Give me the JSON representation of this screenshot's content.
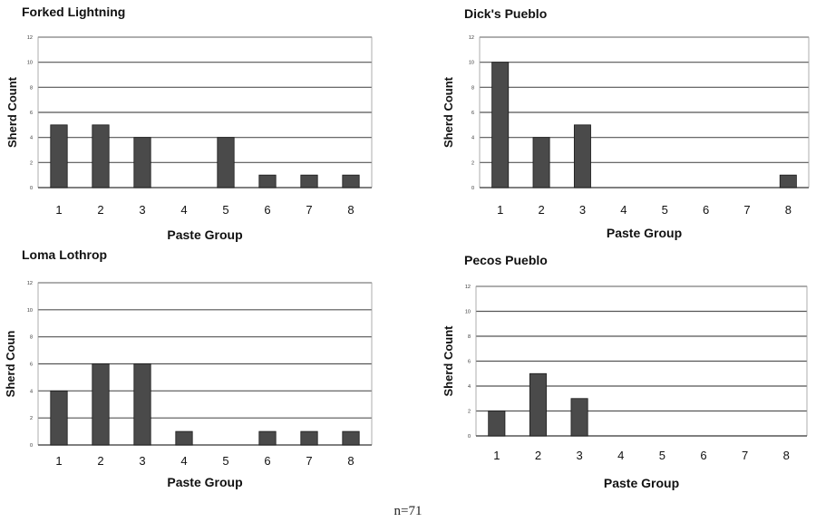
{
  "chart_data": [
    {
      "type": "bar",
      "title": "Forked Lightning",
      "categories": [
        "1",
        "2",
        "3",
        "4",
        "5",
        "6",
        "7",
        "8"
      ],
      "values": [
        5,
        5,
        4,
        0,
        4,
        1,
        1,
        1
      ],
      "ylabel": "Sherd Count",
      "xlabel": "Paste Group",
      "ylim": [
        0,
        12
      ],
      "yticks": [
        "0",
        "2",
        "4",
        "6",
        "8",
        "10",
        "12"
      ],
      "grid": true
    },
    {
      "type": "bar",
      "title": "Dick's Pueblo",
      "categories": [
        "1",
        "2",
        "3",
        "4",
        "5",
        "6",
        "7",
        "8"
      ],
      "values": [
        10,
        4,
        5,
        0,
        0,
        0,
        0,
        1
      ],
      "ylabel": "Sherd Count",
      "xlabel": "Paste Group",
      "ylim": [
        0,
        12
      ],
      "yticks": [
        "0",
        "2",
        "4",
        "6",
        "8",
        "10",
        "12"
      ],
      "grid": true
    },
    {
      "type": "bar",
      "title": "Loma Lothrop",
      "categories": [
        "1",
        "2",
        "3",
        "4",
        "5",
        "6",
        "7",
        "8"
      ],
      "values": [
        4,
        6,
        6,
        1,
        0,
        1,
        1,
        1
      ],
      "ylabel": "Sherd Coun",
      "xlabel": "Paste Group",
      "ylim": [
        0,
        12
      ],
      "yticks": [
        "0",
        "2",
        "4",
        "6",
        "8",
        "10",
        "12"
      ],
      "grid": true
    },
    {
      "type": "bar",
      "title": "Pecos Pueblo",
      "categories": [
        "1",
        "2",
        "3",
        "4",
        "5",
        "6",
        "7",
        "8"
      ],
      "values": [
        2,
        5,
        3,
        0,
        0,
        0,
        0,
        0
      ],
      "ylabel": "Sherd Count",
      "xlabel": "Paste Group",
      "ylim": [
        0,
        12
      ],
      "yticks": [
        "0",
        "2",
        "4",
        "6",
        "8",
        "10",
        "12"
      ],
      "grid": true
    }
  ],
  "colors": {
    "bar": "#4a4a4a",
    "bar_stroke": "#1a1a1a",
    "grid": "#555555",
    "frame": "#9a9a9a"
  },
  "footnote": "n=71"
}
